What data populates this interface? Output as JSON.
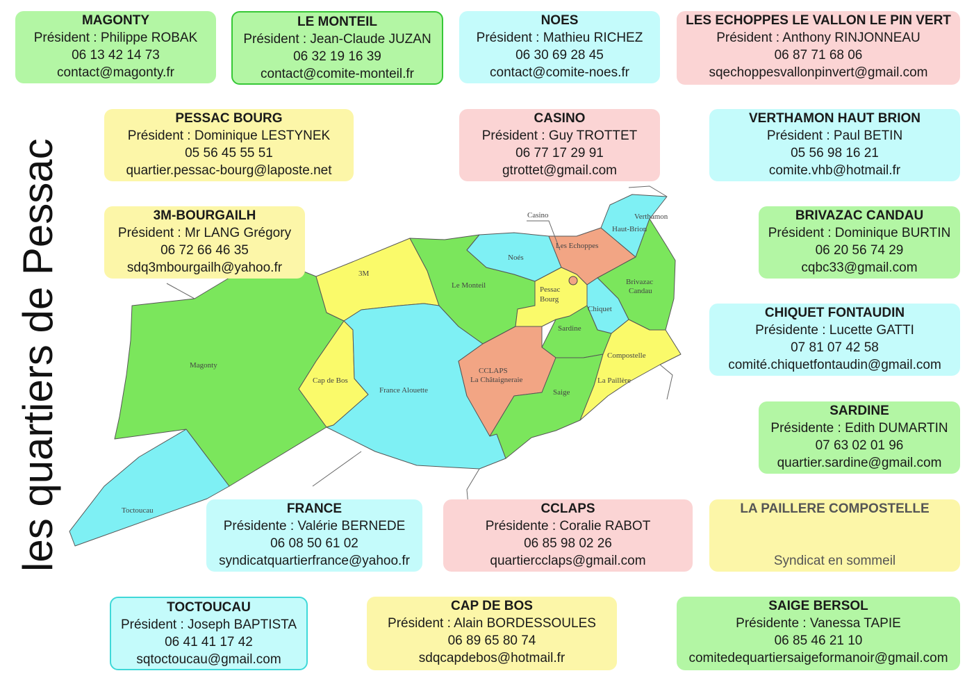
{
  "title": "les quartiers de Pessac",
  "colors": {
    "green": "#7be65c",
    "cyan": "#7ef0f4",
    "yellow": "#fafa6a",
    "salmon": "#f2a584"
  },
  "cards": {
    "magonty": {
      "name": "MAGONTY",
      "line1": "Président : Philippe ROBAK",
      "line2": "06 13 42 14 73",
      "line3": "contact@magonty.fr"
    },
    "monteil": {
      "name": "LE MONTEIL",
      "line1": "Président : Jean-Claude JUZAN",
      "line2": "06 32 19 16 39",
      "line3": "contact@comite-monteil.fr"
    },
    "noes": {
      "name": "NOES",
      "line1": "Président : Mathieu RICHEZ",
      "line2": "06  30 69 28 45",
      "line3": "contact@comite-noes.fr"
    },
    "echoppes": {
      "name": "LES ECHOPPES LE VALLON LE PIN VERT",
      "line1": "Président : Anthony RINJONNEAU",
      "line2": "06 87 71 68 06",
      "line3": "sqechoppesvallonpinvert@gmail.com"
    },
    "pessac_bourg": {
      "name": "PESSAC BOURG",
      "line1": "Président : Dominique LESTYNEK",
      "line2": "05 56 45 55 51",
      "line3": "quartier.pessac-bourg@laposte.net"
    },
    "casino": {
      "name": "CASINO",
      "line1": "Président : Guy TROTTET",
      "line2": "06 77 17 29 91",
      "line3": "gtrottet@gmail.com"
    },
    "verthamon": {
      "name": "VERTHAMON HAUT BRION",
      "line1": "Président : Paul BETIN",
      "line2": "05 56 98 16 21",
      "line3": "comite.vhb@hotmail.fr"
    },
    "bourgailh": {
      "name": "3M-BOURGAILH",
      "line1": "Président : Mr LANG Grégory",
      "line2": "06 72 66 46 35",
      "line3": "sdq3mbourgailh@yahoo.fr"
    },
    "brivazac": {
      "name": "BRIVAZAC CANDAU",
      "line1": "Président : Dominique BURTIN",
      "line2": "06 20 56 74 29",
      "line3": "cqbc33@gmail.com"
    },
    "chiquet": {
      "name": "CHIQUET FONTAUDIN",
      "line1": "Présidente : Lucette GATTI",
      "line2": "07 81 07 42 58",
      "line3": "comité.chiquetfontaudin@gmail.com"
    },
    "sardine": {
      "name": "SARDINE",
      "line1": "Présidente : Edith DUMARTIN",
      "line2": "07 63 02 01 96",
      "line3": "quartier.sardine@gmail.com"
    },
    "france": {
      "name": "FRANCE",
      "line1": "Présidente : Valérie BERNEDE",
      "line2": "06 08 50 61 02",
      "line3": "syndicatquartierfrance@yahoo.fr"
    },
    "cclaps": {
      "name": "CCLAPS",
      "line1": "Présidente : Coralie RABOT",
      "line2": "06 85 98 02 26",
      "line3": "quartiercclaps@gmail.com"
    },
    "paillere": {
      "name": "LA PAILLERE COMPOSTELLE",
      "line1": "",
      "line2": "",
      "line3": "Syndicat en sommeil"
    },
    "toctoucau": {
      "name": "TOCTOUCAU",
      "line1": "Président : Joseph BAPTISTA",
      "line2": "06 41 41 17 42",
      "line3": "sqtoctoucau@gmail.com"
    },
    "capdebos": {
      "name": "CAP DE BOS",
      "line1": "Président : Alain BORDESSOULES",
      "line2": "06 89 65 80 74",
      "line3": "sdqcapdebos@hotmail.fr"
    },
    "saige": {
      "name": "SAIGE BERSOL",
      "line1": "Présidente : Vanessa TAPIE",
      "line2": "06 85 46 21 10",
      "line3": "comitedequartiersaigeformanoir@gmail.com"
    }
  },
  "map_labels": {
    "magonty": "Magonty",
    "toctoucau": "Toctoucau",
    "m3": "3M",
    "cap_de_bos": "Cap de Bos",
    "france_alouette": "France Alouette",
    "le_monteil": "Le Monteil",
    "noes": "Noés",
    "casino": "Casino",
    "les_echoppes": "Les Echoppes",
    "verthamon": "Verthamon",
    "haut_brion": "Haut-Brion",
    "pessac": "Pessac",
    "bourg": "Bourg",
    "brivazac": "Brivazac",
    "candau": "Candau",
    "chiquet": "Chiquet",
    "sardine": "Sardine",
    "cclaps": "CCLAPS",
    "chataigneraie": "La Châtaigneraie",
    "saige": "Saige",
    "compostelle": "Compostelle",
    "la_paillere": "La Paillère"
  }
}
